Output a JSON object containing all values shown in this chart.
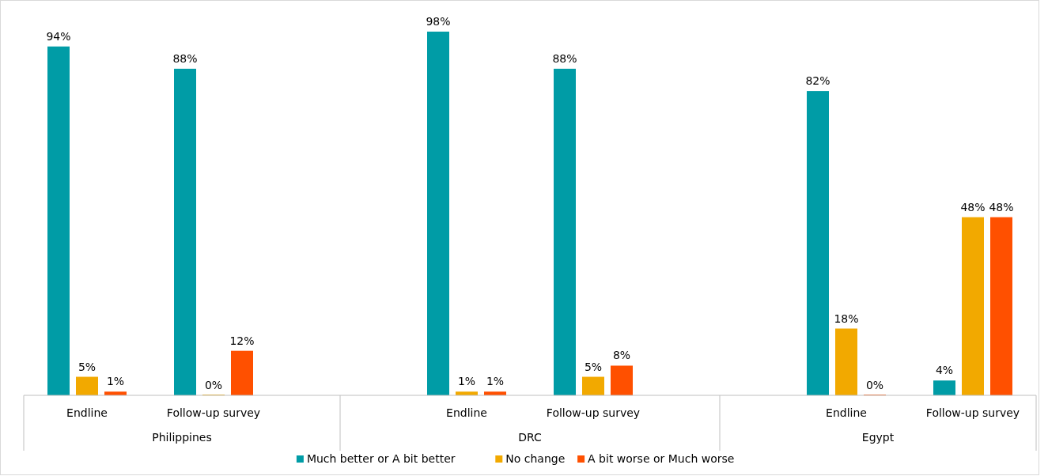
{
  "chart_data": {
    "type": "bar",
    "categories": [
      "Endline",
      "Follow-up survey",
      null,
      "Endline",
      "Follow-up survey",
      null,
      "Endline",
      "Follow-up survey"
    ],
    "annotations": [
      "Philippines",
      "DRC",
      "Egypt"
    ],
    "tick_labels": "x",
    "legend": "bottom",
    "series": [
      {
        "name": "Much better or A bit better",
        "color": "#009ca6",
        "values": [
          94,
          88,
          null,
          98,
          88,
          null,
          82,
          4
        ],
        "value_labels": [
          "94%",
          "88%",
          null,
          "98%",
          "88%",
          null,
          "82%",
          "4%"
        ]
      },
      {
        "name": "No change",
        "color": "#f2a900",
        "values": [
          5,
          0,
          null,
          1,
          5,
          null,
          18,
          48
        ],
        "value_labels": [
          "5%",
          "0%",
          null,
          "1%",
          "5%",
          null,
          "18%",
          "48%"
        ]
      },
      {
        "name": "A bit worse or Much worse",
        "color": "#ff5000",
        "values": [
          1,
          12,
          null,
          1,
          8,
          null,
          0,
          48
        ],
        "value_labels": [
          "1%",
          "12%",
          null,
          "1%",
          "8%",
          null,
          "0%",
          "48%"
        ]
      }
    ]
  }
}
